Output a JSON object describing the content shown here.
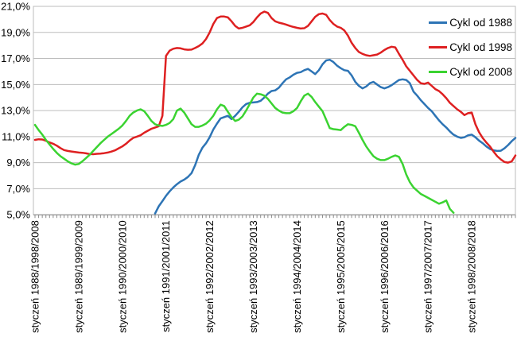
{
  "chart_data": {
    "type": "line",
    "title": "",
    "grid": "horizontal",
    "legend_position": "top-right",
    "y_axis": {
      "min": 5,
      "max": 21,
      "step": 2,
      "tick_labels_top_to_bottom": [
        "21,0%",
        "19,0%",
        "17,0%",
        "15,0%",
        "13,0%",
        "11,0%",
        "9,0%",
        "7,0%",
        "5,0%"
      ]
    },
    "x_axis": {
      "months_total": 133,
      "minor_tick_every_months": 1,
      "label_every_months": 12,
      "labels": [
        "styczeń 1988/1998/2008",
        "styczeń 1989/1999/2009",
        "styczeń 1990/2000/2010",
        "styczeń 1991/2001/2011",
        "styczeń 1992/2002/2012",
        "styczeń 1993/2003/2013",
        "styczeń 1994/2004/2014",
        "styczeń 1995/2005/2015",
        "styczeń 1996/2006/2016",
        "styczeń 1997/2007/2017",
        "styczeń 1998/2008/2018"
      ]
    },
    "series": [
      {
        "name": "Cykl od 1988",
        "color": "#2D74B5",
        "start_month": 33,
        "values": [
          5.1,
          5.65,
          6.05,
          6.45,
          6.8,
          7.1,
          7.35,
          7.55,
          7.7,
          7.9,
          8.2,
          8.8,
          9.6,
          10.15,
          10.5,
          10.95,
          11.55,
          12.0,
          12.4,
          12.5,
          12.6,
          12.35,
          12.6,
          12.9,
          13.25,
          13.5,
          13.6,
          13.62,
          13.65,
          13.75,
          14.0,
          14.3,
          14.5,
          14.55,
          14.75,
          15.1,
          15.4,
          15.55,
          15.75,
          15.9,
          15.95,
          16.1,
          16.2,
          16.0,
          15.8,
          16.1,
          16.55,
          16.85,
          16.9,
          16.72,
          16.45,
          16.25,
          16.1,
          16.05,
          15.7,
          15.2,
          14.9,
          14.7,
          14.85,
          15.1,
          15.2,
          15.0,
          14.8,
          14.7,
          14.8,
          14.95,
          15.15,
          15.35,
          15.4,
          15.35,
          15.1,
          14.45,
          14.15,
          13.8,
          13.5,
          13.2,
          12.95,
          12.6,
          12.25,
          11.95,
          11.7,
          11.4,
          11.15,
          11.0,
          10.9,
          10.95,
          11.1,
          11.15,
          10.95,
          10.7,
          10.5,
          10.25,
          10.05,
          9.95,
          9.9,
          9.92,
          10.1,
          10.35,
          10.65,
          10.9
        ]
      },
      {
        "name": "Cykl od 1998",
        "color": "#DE2021",
        "start_month": 0,
        "values": [
          10.75,
          10.8,
          10.78,
          10.68,
          10.55,
          10.45,
          10.3,
          10.12,
          9.97,
          9.9,
          9.86,
          9.82,
          9.78,
          9.76,
          9.72,
          9.66,
          9.65,
          9.68,
          9.7,
          9.73,
          9.78,
          9.85,
          9.95,
          10.1,
          10.25,
          10.45,
          10.7,
          10.9,
          11.0,
          11.1,
          11.3,
          11.45,
          11.6,
          11.7,
          11.8,
          12.6,
          17.2,
          17.6,
          17.75,
          17.8,
          17.78,
          17.7,
          17.67,
          17.68,
          17.8,
          17.95,
          18.15,
          18.5,
          19.0,
          19.65,
          20.1,
          20.22,
          20.22,
          20.15,
          19.85,
          19.5,
          19.3,
          19.35,
          19.45,
          19.55,
          19.8,
          20.15,
          20.45,
          20.6,
          20.5,
          20.1,
          19.85,
          19.75,
          19.68,
          19.6,
          19.5,
          19.42,
          19.35,
          19.3,
          19.32,
          19.5,
          19.85,
          20.2,
          20.4,
          20.45,
          20.35,
          19.95,
          19.65,
          19.45,
          19.35,
          19.15,
          18.75,
          18.2,
          17.8,
          17.5,
          17.35,
          17.25,
          17.2,
          17.25,
          17.3,
          17.45,
          17.65,
          17.8,
          17.9,
          17.85,
          17.35,
          16.9,
          16.4,
          16.05,
          15.7,
          15.35,
          15.1,
          15.05,
          15.15,
          14.9,
          14.65,
          14.5,
          14.25,
          13.95,
          13.6,
          13.35,
          13.1,
          12.9,
          12.65,
          12.8,
          12.85,
          11.95,
          11.35,
          10.9,
          10.55,
          10.25,
          9.85,
          9.5,
          9.25,
          9.05,
          9.0,
          9.1,
          9.55
        ]
      },
      {
        "name": "Cykl od 2008",
        "color": "#3BD331",
        "start_month": 0,
        "values": [
          11.9,
          11.5,
          11.15,
          10.75,
          10.4,
          10.05,
          9.75,
          9.5,
          9.3,
          9.1,
          8.95,
          8.85,
          8.9,
          9.1,
          9.35,
          9.6,
          9.9,
          10.2,
          10.5,
          10.75,
          11.0,
          11.2,
          11.4,
          11.6,
          11.85,
          12.2,
          12.6,
          12.85,
          13.0,
          13.1,
          12.95,
          12.6,
          12.2,
          11.95,
          11.85,
          11.82,
          11.9,
          12.05,
          12.35,
          13.0,
          13.15,
          12.85,
          12.4,
          11.95,
          11.75,
          11.75,
          11.85,
          12.0,
          12.25,
          12.6,
          13.1,
          13.45,
          13.35,
          12.9,
          12.5,
          12.2,
          12.3,
          12.55,
          13.0,
          13.5,
          14.0,
          14.3,
          14.25,
          14.15,
          13.9,
          13.55,
          13.2,
          13.0,
          12.85,
          12.8,
          12.8,
          12.95,
          13.2,
          13.7,
          14.15,
          14.3,
          14.05,
          13.65,
          13.3,
          12.95,
          12.3,
          11.65,
          11.57,
          11.54,
          11.5,
          11.75,
          11.95,
          11.9,
          11.8,
          11.3,
          10.75,
          10.25,
          9.85,
          9.5,
          9.3,
          9.2,
          9.2,
          9.3,
          9.45,
          9.55,
          9.45,
          8.9,
          8.1,
          7.5,
          7.1,
          6.85,
          6.6,
          6.45,
          6.3,
          6.15,
          6.0,
          5.85,
          5.95,
          6.1,
          5.45,
          5.15
        ]
      }
    ]
  },
  "colors": {
    "gridline": "#bdbdbd",
    "axis": "#8c8c8c",
    "plot_border": "#bdbdbd",
    "background": "#ffffff",
    "text": "#000000"
  }
}
